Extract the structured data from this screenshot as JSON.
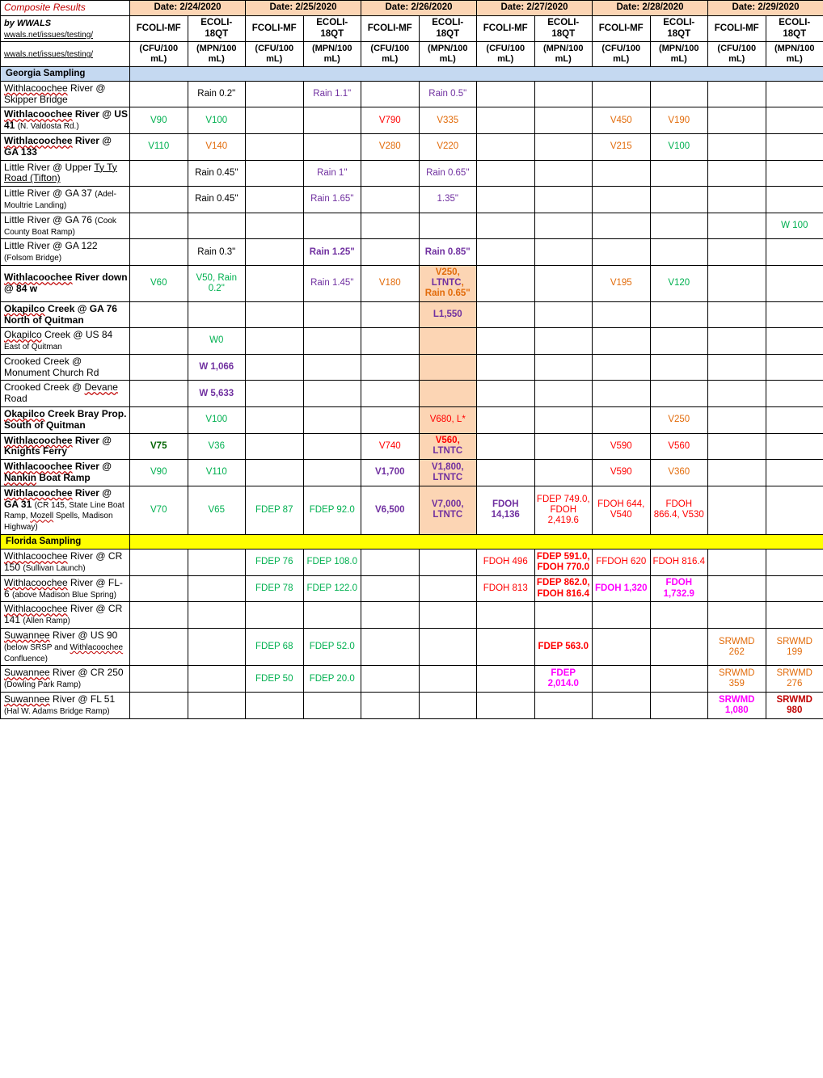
{
  "colors": {
    "green": "#00b050",
    "darkgreen": "#006400",
    "orange": "#e26b0a",
    "red": "#ff0000",
    "darkred": "#c00000",
    "magenta": "#ff00ff",
    "purple": "#7030a0",
    "black": "#000000",
    "blue": "#0000ff"
  },
  "header": {
    "title": "Composite Results",
    "byline": "by WWALS",
    "link": "wwals.net/issues/testing/",
    "link2": "wwals.net/issues/testing/",
    "dates": [
      "Date:  2/24/2020",
      "Date:  2/25/2020",
      "Date:  2/26/2020",
      "Date:  2/27/2020",
      "Date:  2/28/2020",
      "Date:  2/29/2020"
    ],
    "colpair": [
      "FCOLI-MF",
      "ECOLI-18QT"
    ],
    "unitpair": [
      "(CFU/100 mL)",
      "(MPN/100 mL)"
    ]
  },
  "sections": {
    "ga": "Georgia Sampling",
    "fl": "Florida Sampling"
  },
  "rows": [
    {
      "section": "ga"
    },
    {
      "loc": "<span class='wavy'>Withlacoochee</span> River @ Skipper Bridge",
      "cells": [
        {
          "t": ""
        },
        {
          "t": "Rain 0.2\"",
          "c": "black"
        },
        {
          "t": ""
        },
        {
          "t": "Rain 1.1\"",
          "c": "purple"
        },
        {
          "t": ""
        },
        {
          "t": "Rain 0.5\"",
          "c": "purple"
        },
        {
          "t": ""
        },
        {
          "t": ""
        },
        {
          "t": ""
        },
        {
          "t": ""
        },
        {
          "t": ""
        },
        {
          "t": ""
        }
      ]
    },
    {
      "loc": "<b><span class='wavy'>Withlacoochee</span> River @ US 41</b> <small>(N. Valdosta Rd.)</small>",
      "cells": [
        {
          "t": "V90",
          "c": "green"
        },
        {
          "t": "V100",
          "c": "green"
        },
        {
          "t": ""
        },
        {
          "t": ""
        },
        {
          "t": "V790",
          "c": "red"
        },
        {
          "t": "V335",
          "c": "orange"
        },
        {
          "t": ""
        },
        {
          "t": ""
        },
        {
          "t": "V450",
          "c": "orange"
        },
        {
          "t": "V190",
          "c": "orange"
        },
        {
          "t": ""
        },
        {
          "t": ""
        }
      ]
    },
    {
      "loc": "<b><span class='wavy'>Withlacoochee</span> River @ GA 133</b>",
      "cells": [
        {
          "t": "V110",
          "c": "green"
        },
        {
          "t": "V140",
          "c": "orange"
        },
        {
          "t": ""
        },
        {
          "t": ""
        },
        {
          "t": "V280",
          "c": "orange"
        },
        {
          "t": "V220",
          "c": "orange"
        },
        {
          "t": ""
        },
        {
          "t": ""
        },
        {
          "t": "V215",
          "c": "orange"
        },
        {
          "t": "V100",
          "c": "green"
        },
        {
          "t": ""
        },
        {
          "t": ""
        }
      ]
    },
    {
      "loc": "Little River @ Upper <span style='text-decoration:underline'>Ty Ty Road (Tifton)</span>",
      "cells": [
        {
          "t": ""
        },
        {
          "t": "Rain 0.45\"",
          "c": "black"
        },
        {
          "t": ""
        },
        {
          "t": "Rain 1\"",
          "c": "purple"
        },
        {
          "t": ""
        },
        {
          "t": "Rain 0.65\"",
          "c": "purple"
        },
        {
          "t": ""
        },
        {
          "t": ""
        },
        {
          "t": ""
        },
        {
          "t": ""
        },
        {
          "t": ""
        },
        {
          "t": ""
        }
      ]
    },
    {
      "loc": "Little River @ GA 37 <small>(Adel-Moultrie Landing)</small>",
      "cells": [
        {
          "t": ""
        },
        {
          "t": "Rain 0.45\"",
          "c": "black"
        },
        {
          "t": ""
        },
        {
          "t": "Rain 1.65\"",
          "c": "purple"
        },
        {
          "t": ""
        },
        {
          "t": "1.35\"",
          "c": "purple"
        },
        {
          "t": ""
        },
        {
          "t": ""
        },
        {
          "t": ""
        },
        {
          "t": ""
        },
        {
          "t": ""
        },
        {
          "t": ""
        }
      ]
    },
    {
      "loc": "Little River @ GA 76 <small>(Cook County Boat Ramp)</small>",
      "cells": [
        {
          "t": ""
        },
        {
          "t": ""
        },
        {
          "t": ""
        },
        {
          "t": ""
        },
        {
          "t": ""
        },
        {
          "t": ""
        },
        {
          "t": ""
        },
        {
          "t": ""
        },
        {
          "t": ""
        },
        {
          "t": ""
        },
        {
          "t": ""
        },
        {
          "t": "W 100",
          "c": "green"
        }
      ]
    },
    {
      "loc": "Little River @ GA 122 <small>(Folsom Bridge)</small>",
      "cells": [
        {
          "t": ""
        },
        {
          "t": "Rain 0.3\"",
          "c": "black"
        },
        {
          "t": ""
        },
        {
          "t": "Rain 1.25\"",
          "c": "purple",
          "b": true
        },
        {
          "t": ""
        },
        {
          "t": "Rain 0.85\"",
          "c": "purple",
          "b": true
        },
        {
          "t": ""
        },
        {
          "t": ""
        },
        {
          "t": ""
        },
        {
          "t": ""
        },
        {
          "t": ""
        },
        {
          "t": ""
        }
      ]
    },
    {
      "loc": "<b><span class='wavy'>Withlacoochee</span> River down @ 84 w</b>",
      "cells": [
        {
          "t": "V60",
          "c": "green"
        },
        {
          "t": "V50, Rain 0.2\"",
          "c": "green"
        },
        {
          "t": ""
        },
        {
          "t": "Rain 1.45\"",
          "c": "purple"
        },
        {
          "t": "V180",
          "c": "orange"
        },
        {
          "t": "V250, LTNTC, Rain 0.65\"",
          "c": "orange",
          "hl": true,
          "b": true
        },
        {
          "t": ""
        },
        {
          "t": ""
        },
        {
          "t": "V195",
          "c": "orange"
        },
        {
          "t": "V120",
          "c": "green"
        },
        {
          "t": ""
        },
        {
          "t": ""
        }
      ]
    },
    {
      "loc": "<b><span class='wavy'>Okapilco</span> Creek @ GA 76 North of Quitman</b>",
      "cells": [
        {
          "t": ""
        },
        {
          "t": ""
        },
        {
          "t": ""
        },
        {
          "t": ""
        },
        {
          "t": ""
        },
        {
          "t": "L1,550",
          "c": "purple",
          "hl": true,
          "b": true
        },
        {
          "t": ""
        },
        {
          "t": ""
        },
        {
          "t": ""
        },
        {
          "t": ""
        },
        {
          "t": ""
        },
        {
          "t": ""
        }
      ]
    },
    {
      "loc": "<span class='wavy'>Okapilco</span> Creek @ US 84 <small>East of Quitman</small>",
      "cells": [
        {
          "t": ""
        },
        {
          "t": "W0",
          "c": "green"
        },
        {
          "t": ""
        },
        {
          "t": ""
        },
        {
          "t": ""
        },
        {
          "t": "",
          "hl": true
        },
        {
          "t": ""
        },
        {
          "t": ""
        },
        {
          "t": ""
        },
        {
          "t": ""
        },
        {
          "t": ""
        },
        {
          "t": ""
        }
      ]
    },
    {
      "loc": "Crooked Creek @ Monument Church Rd",
      "cells": [
        {
          "t": ""
        },
        {
          "t": "W 1,066",
          "c": "purple",
          "b": true
        },
        {
          "t": ""
        },
        {
          "t": ""
        },
        {
          "t": ""
        },
        {
          "t": "",
          "hl": true
        },
        {
          "t": ""
        },
        {
          "t": ""
        },
        {
          "t": ""
        },
        {
          "t": ""
        },
        {
          "t": ""
        },
        {
          "t": ""
        }
      ]
    },
    {
      "loc": "Crooked Creek @ <span class='wavy'>Devane</span> Road",
      "cells": [
        {
          "t": ""
        },
        {
          "t": "W 5,633",
          "c": "purple",
          "b": true
        },
        {
          "t": ""
        },
        {
          "t": ""
        },
        {
          "t": ""
        },
        {
          "t": "",
          "hl": true
        },
        {
          "t": ""
        },
        {
          "t": ""
        },
        {
          "t": ""
        },
        {
          "t": ""
        },
        {
          "t": ""
        },
        {
          "t": ""
        }
      ]
    },
    {
      "loc": "<b><span class='wavy'>Okapilco</span> Creek Bray Prop. South of Quitman</b>",
      "cells": [
        {
          "t": ""
        },
        {
          "t": "V100",
          "c": "green"
        },
        {
          "t": ""
        },
        {
          "t": ""
        },
        {
          "t": ""
        },
        {
          "t": "V680, L*",
          "c": "red",
          "hl": true
        },
        {
          "t": ""
        },
        {
          "t": ""
        },
        {
          "t": ""
        },
        {
          "t": "V250",
          "c": "orange"
        },
        {
          "t": ""
        },
        {
          "t": ""
        }
      ]
    },
    {
      "loc": "<b><span class='wavy'>Withlacoochee</span> River @ Knights Ferry</b>",
      "cells": [
        {
          "t": "V75",
          "c": "darkgreen",
          "b": true
        },
        {
          "t": "V36",
          "c": "green"
        },
        {
          "t": ""
        },
        {
          "t": ""
        },
        {
          "t": "V740",
          "c": "red"
        },
        {
          "t": "V560, LTNTC",
          "c": "red",
          "hl": true,
          "b": true
        },
        {
          "t": ""
        },
        {
          "t": ""
        },
        {
          "t": "V590",
          "c": "red"
        },
        {
          "t": "V560",
          "c": "red"
        },
        {
          "t": ""
        },
        {
          "t": ""
        }
      ]
    },
    {
      "loc": "<b><span class='wavy'>Withlacoochee</span> River @ <span class='wavy'>Nankin</span> Boat Ramp</b>",
      "cells": [
        {
          "t": "V90",
          "c": "green"
        },
        {
          "t": "V110",
          "c": "green"
        },
        {
          "t": ""
        },
        {
          "t": ""
        },
        {
          "t": "V1,700",
          "c": "purple",
          "b": true
        },
        {
          "t": "V1,800, LTNTC",
          "c": "purple",
          "hl": true,
          "b": true
        },
        {
          "t": ""
        },
        {
          "t": ""
        },
        {
          "t": "V590",
          "c": "red"
        },
        {
          "t": "V360",
          "c": "orange"
        },
        {
          "t": ""
        },
        {
          "t": ""
        }
      ]
    },
    {
      "loc": "<b><span class='wavy'>Withlacoochee</span> River @ GA 31</b> <small>(CR 145, State Line Boat Ramp, <span class='wavy'>Mozell</span> Spells, Madison Highway)</small>",
      "cells": [
        {
          "t": "V70",
          "c": "green"
        },
        {
          "t": "V65",
          "c": "green"
        },
        {
          "t": "FDEP 87",
          "c": "green"
        },
        {
          "t": "FDEP 92.0",
          "c": "green"
        },
        {
          "t": "V6,500",
          "c": "purple",
          "b": true
        },
        {
          "t": "V7,000, LTNTC",
          "c": "purple",
          "hl": true,
          "b": true
        },
        {
          "t": "FDOH 14,136",
          "c": "purple",
          "b": true
        },
        {
          "t": "FDEP 749.0, FDOH 2,419.6",
          "c": "red"
        },
        {
          "t": "FDOH 644, V540",
          "c": "red"
        },
        {
          "t": "FDOH 866.4, V530",
          "c": "red"
        },
        {
          "t": ""
        },
        {
          "t": ""
        }
      ]
    },
    {
      "section": "fl"
    },
    {
      "loc": "<span class='wavy'>Withlacoochee</span> River @ CR 150 <small>(Sullivan Launch)</small>",
      "cells": [
        {
          "t": ""
        },
        {
          "t": ""
        },
        {
          "t": "FDEP 76",
          "c": "green"
        },
        {
          "t": "FDEP 108.0",
          "c": "green"
        },
        {
          "t": ""
        },
        {
          "t": ""
        },
        {
          "t": "FDOH 496",
          "c": "red"
        },
        {
          "t": "FDEP 591.0, FDOH 770.0",
          "c": "red",
          "b": true
        },
        {
          "t": "FFDOH 620",
          "c": "red"
        },
        {
          "t": "FDOH 816.4",
          "c": "red"
        },
        {
          "t": ""
        },
        {
          "t": ""
        }
      ]
    },
    {
      "loc": "<span class='wavy'>Withlacoochee</span> River @ FL-6 <small>(above Madison Blue Spring)</small>",
      "cells": [
        {
          "t": ""
        },
        {
          "t": ""
        },
        {
          "t": "FDEP 78",
          "c": "green"
        },
        {
          "t": "FDEP 122.0",
          "c": "green"
        },
        {
          "t": ""
        },
        {
          "t": ""
        },
        {
          "t": "FDOH 813",
          "c": "red"
        },
        {
          "t": "FDEP 862.0, FDOH 816.4",
          "c": "red",
          "b": true
        },
        {
          "t": "FDOH 1,320",
          "c": "magenta",
          "b": true
        },
        {
          "t": "FDOH 1,732.9",
          "c": "magenta",
          "b": true
        },
        {
          "t": ""
        },
        {
          "t": ""
        }
      ]
    },
    {
      "loc": "<span class='wavy'>Withlacoochee</span> River @ CR 141 <small>(Allen Ramp)</small>",
      "cells": [
        {
          "t": ""
        },
        {
          "t": ""
        },
        {
          "t": ""
        },
        {
          "t": ""
        },
        {
          "t": ""
        },
        {
          "t": ""
        },
        {
          "t": ""
        },
        {
          "t": ""
        },
        {
          "t": ""
        },
        {
          "t": ""
        },
        {
          "t": ""
        },
        {
          "t": ""
        }
      ]
    },
    {
      "loc": "<span class='wavy'>Suwannee</span> River @ US 90 <small>(below SRSP and <span class='wavy'>Withlacoochee</span> Confluence)</small>",
      "cells": [
        {
          "t": ""
        },
        {
          "t": ""
        },
        {
          "t": "FDEP 68",
          "c": "green"
        },
        {
          "t": "FDEP 52.0",
          "c": "green"
        },
        {
          "t": ""
        },
        {
          "t": ""
        },
        {
          "t": ""
        },
        {
          "t": "FDEP 563.0",
          "c": "red",
          "b": true
        },
        {
          "t": ""
        },
        {
          "t": ""
        },
        {
          "t": "SRWMD 262",
          "c": "orange"
        },
        {
          "t": "SRWMD 199",
          "c": "orange"
        }
      ]
    },
    {
      "loc": "<span class='wavy'>Suwannee</span> River @ CR 250 <small>(Dowling Park Ramp)</small>",
      "cells": [
        {
          "t": ""
        },
        {
          "t": ""
        },
        {
          "t": "FDEP 50",
          "c": "green"
        },
        {
          "t": "FDEP 20.0",
          "c": "green"
        },
        {
          "t": ""
        },
        {
          "t": ""
        },
        {
          "t": ""
        },
        {
          "t": "FDEP 2,014.0",
          "c": "magenta",
          "b": true
        },
        {
          "t": ""
        },
        {
          "t": ""
        },
        {
          "t": "SRWMD 359",
          "c": "orange"
        },
        {
          "t": "SRWMD 276",
          "c": "orange"
        }
      ]
    },
    {
      "loc": "<span class='wavy'>Suwannee</span> River @ FL 51 <small>(Hal W. Adams Bridge Ramp)</small>",
      "cells": [
        {
          "t": ""
        },
        {
          "t": ""
        },
        {
          "t": ""
        },
        {
          "t": ""
        },
        {
          "t": ""
        },
        {
          "t": ""
        },
        {
          "t": ""
        },
        {
          "t": ""
        },
        {
          "t": ""
        },
        {
          "t": ""
        },
        {
          "t": "SRWMD 1,080",
          "c": "magenta",
          "b": true
        },
        {
          "t": "SRWMD 980",
          "c": "darkred",
          "b": true
        }
      ]
    }
  ]
}
